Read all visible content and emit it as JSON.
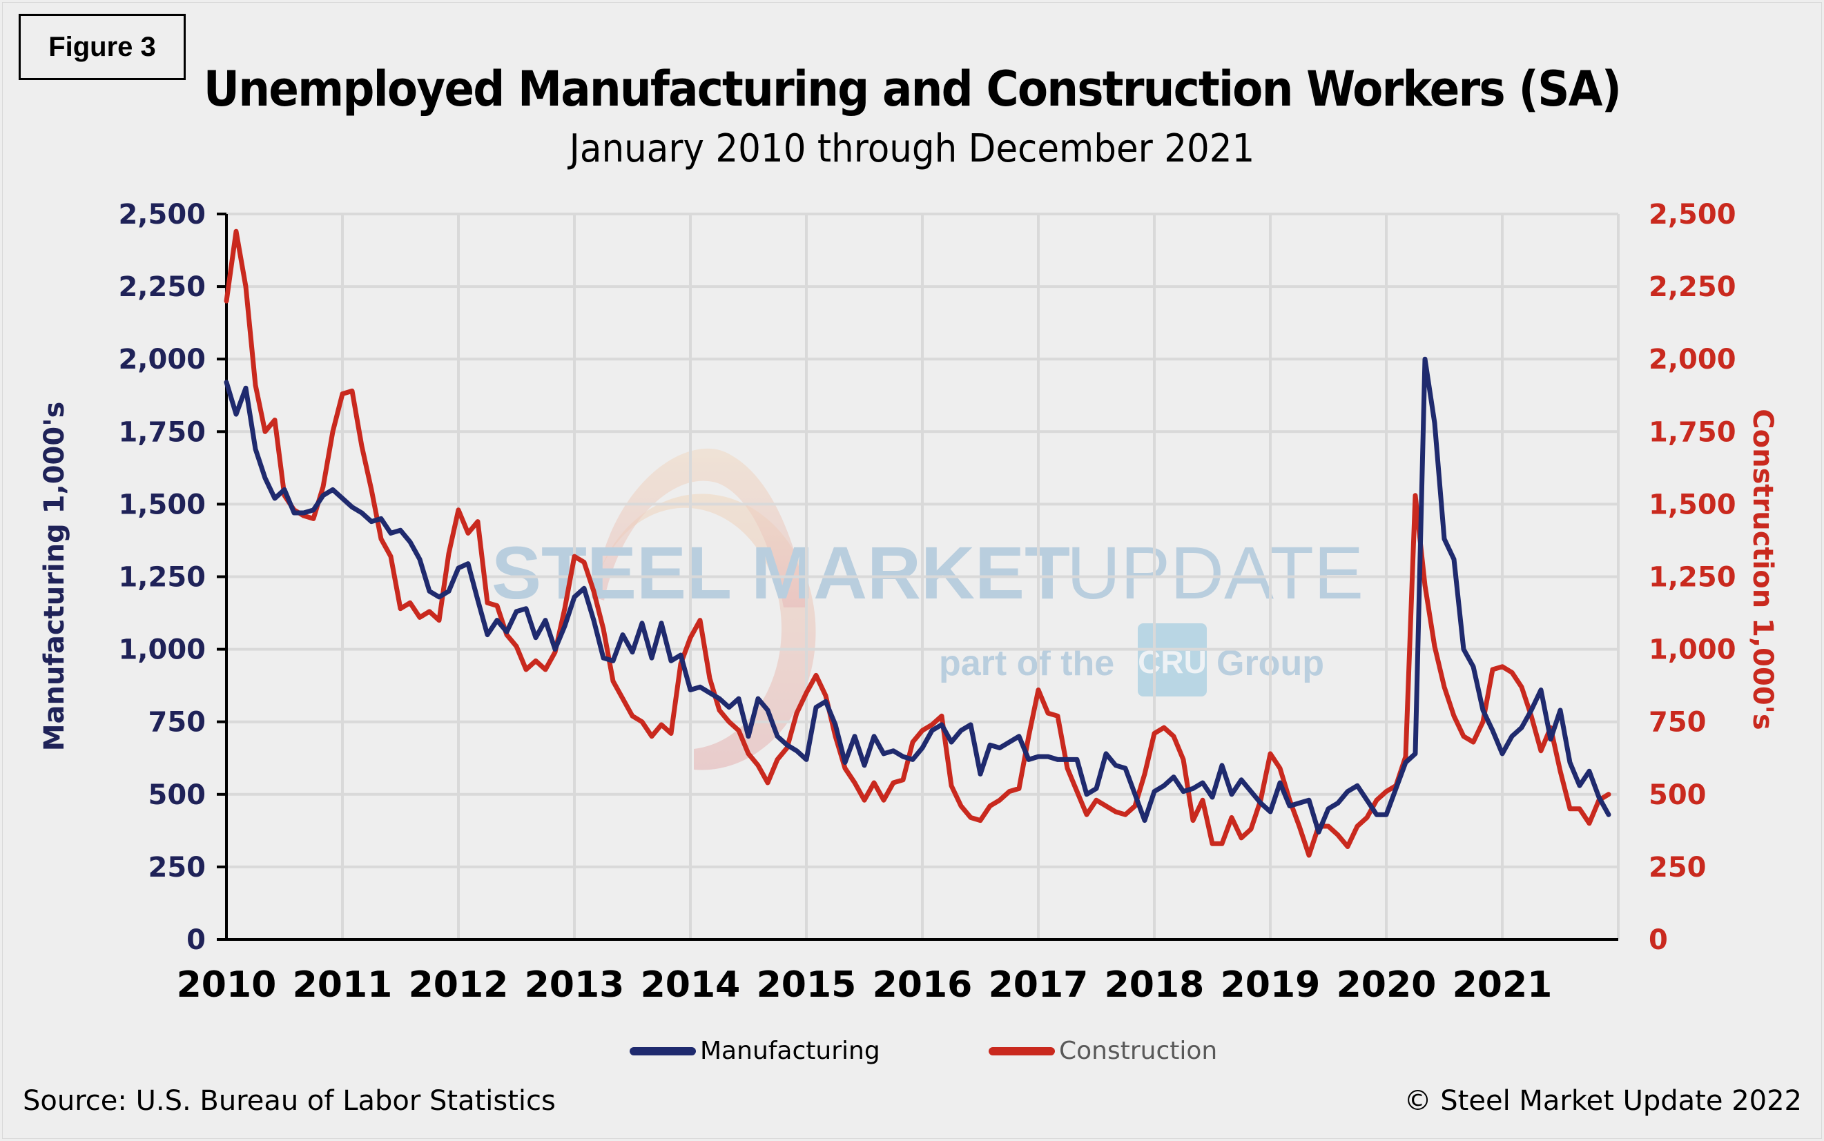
{
  "figure_label": "Figure 3",
  "title": "Unemployed Manufacturing and Construction Workers (SA)",
  "subtitle": "January 2010 through December 2021",
  "source": "Source: U.S. Bureau  of Labor Statistics",
  "copyright": "© Steel Market Update 2022",
  "watermark": {
    "brand_bold": "STEEL MARKET",
    "brand_light": "UPDATE",
    "tagline_pre": "part of the",
    "tagline_logo": "CRU",
    "tagline_post": "Group"
  },
  "legend": [
    {
      "label": "Manufacturing",
      "color": "#1f2a6e"
    },
    {
      "label": "Construction",
      "color": "#c9291e"
    }
  ],
  "colors": {
    "manufacturing": "#1f2a6e",
    "construction": "#c9291e",
    "left_axis_text": "#1f2258",
    "right_axis_text": "#c9291e",
    "grid": "#d9d9d9",
    "background": "#eeeeee"
  },
  "chart_data": {
    "type": "line",
    "title": "Unemployed Manufacturing and Construction Workers (SA)",
    "subtitle": "January 2010 through December 2021",
    "xlabel": "",
    "ylabel": "Manufacturing 1,000's",
    "y2label": "Construction 1,000's",
    "ylim": [
      0,
      2500
    ],
    "y2lim": [
      0,
      2500
    ],
    "yticks": [
      "0",
      "250",
      "500",
      "750",
      "1,000",
      "1,250",
      "1,500",
      "1,750",
      "2,000",
      "2,250",
      "2,500"
    ],
    "y2ticks": [
      "0",
      "250",
      "500",
      "750",
      "1,000",
      "1,250",
      "1,500",
      "1,750",
      "2,000",
      "2,250",
      "2,500"
    ],
    "xticks": [
      "2010",
      "2011",
      "2012",
      "2013",
      "2014",
      "2015",
      "2016",
      "2017",
      "2018",
      "2019",
      "2020",
      "2021"
    ],
    "grid": true,
    "legend_position": "bottom",
    "x_start": "2010-01",
    "x_end": "2021-12",
    "frequency": "monthly",
    "series": [
      {
        "name": "Manufacturing",
        "axis": "left",
        "color": "#1f2a6e",
        "values": [
          1920,
          1810,
          1900,
          1690,
          1590,
          1520,
          1550,
          1470,
          1470,
          1480,
          1530,
          1550,
          1520,
          1490,
          1470,
          1440,
          1450,
          1400,
          1410,
          1370,
          1310,
          1200,
          1180,
          1200,
          1280,
          1295,
          1170,
          1050,
          1100,
          1060,
          1130,
          1140,
          1040,
          1100,
          1000,
          1080,
          1180,
          1210,
          1100,
          970,
          960,
          1050,
          990,
          1090,
          970,
          1090,
          960,
          980,
          860,
          870,
          850,
          830,
          800,
          830,
          700,
          830,
          790,
          700,
          670,
          650,
          620,
          800,
          820,
          740,
          610,
          700,
          600,
          700,
          640,
          650,
          630,
          620,
          660,
          720,
          740,
          680,
          720,
          740,
          570,
          670,
          660,
          680,
          700,
          620,
          630,
          630,
          620,
          620,
          620,
          500,
          520,
          640,
          600,
          590,
          500,
          410,
          510,
          530,
          560,
          510,
          520,
          540,
          490,
          600,
          500,
          550,
          510,
          470,
          440,
          540,
          460,
          470,
          480,
          370,
          450,
          470,
          510,
          530,
          480,
          430,
          430,
          520,
          610,
          640,
          2000,
          1780,
          1380,
          1310,
          1000,
          940,
          790,
          720,
          640,
          700,
          730,
          790,
          860,
          690,
          790,
          610,
          530,
          580,
          490,
          430
        ]
      },
      {
        "name": "Construction",
        "axis": "right",
        "color": "#c9291e",
        "values": [
          2200,
          2440,
          2250,
          1910,
          1750,
          1790,
          1530,
          1480,
          1460,
          1450,
          1560,
          1750,
          1880,
          1890,
          1700,
          1550,
          1380,
          1320,
          1140,
          1160,
          1110,
          1130,
          1100,
          1330,
          1480,
          1400,
          1440,
          1160,
          1150,
          1050,
          1010,
          930,
          960,
          930,
          990,
          1140,
          1320,
          1300,
          1200,
          1070,
          890,
          830,
          770,
          750,
          700,
          740,
          710,
          950,
          1040,
          1100,
          900,
          790,
          750,
          720,
          640,
          600,
          540,
          620,
          660,
          780,
          850,
          910,
          840,
          700,
          590,
          540,
          480,
          540,
          480,
          540,
          550,
          680,
          720,
          740,
          770,
          530,
          460,
          420,
          410,
          460,
          480,
          510,
          520,
          700,
          860,
          780,
          770,
          590,
          510,
          430,
          480,
          460,
          440,
          430,
          460,
          570,
          710,
          730,
          700,
          620,
          410,
          480,
          330,
          330,
          420,
          350,
          380,
          480,
          640,
          590,
          480,
          390,
          290,
          390,
          390,
          360,
          320,
          390,
          420,
          480,
          510,
          530,
          630,
          1530,
          1220,
          1010,
          870,
          770,
          700,
          680,
          750,
          930,
          940,
          920,
          870,
          770,
          650,
          730,
          580,
          450,
          450,
          400,
          480,
          500
        ]
      }
    ]
  }
}
